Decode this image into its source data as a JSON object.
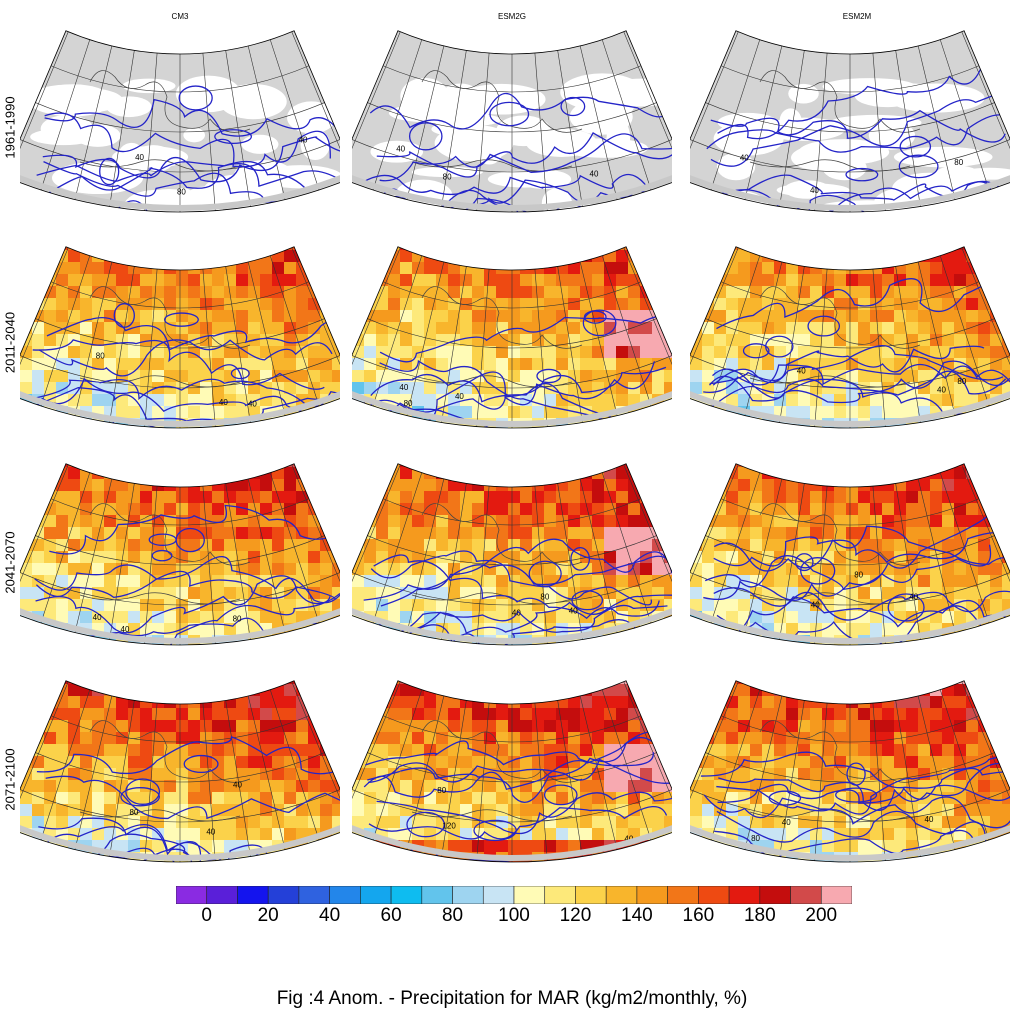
{
  "figure": {
    "caption": "Fig :4  Anom.  - Precipitation for MAR (kg/m2/monthly, %)",
    "columns": [
      "CM3",
      "ESM2G",
      "ESM2M"
    ],
    "rows": [
      "1961-1990",
      "2011-2040",
      "2041-2070",
      "2071-2100"
    ],
    "contour_labels": [
      "40",
      "80",
      "120"
    ],
    "colorbar": {
      "ticks": [
        "0",
        "20",
        "40",
        "60",
        "80",
        "100",
        "120",
        "140",
        "160",
        "180",
        "200"
      ],
      "colors": [
        "#8a2be2",
        "#5a1fd9",
        "#1414ee",
        "#2440d8",
        "#2f62e0",
        "#2386ea",
        "#14a6ee",
        "#0ebcf0",
        "#62c4ec",
        "#9ed4f0",
        "#c8e4f4",
        "#fffbb6",
        "#fde97a",
        "#fbd24a",
        "#f8b52c",
        "#f59a1e",
        "#f27618",
        "#ee4a12",
        "#e31a10",
        "#c40d0d",
        "#d24a4a",
        "#f7a9b0"
      ]
    }
  },
  "palette": {
    "land_grey": "#d4d4d4",
    "ocean_white": "#ffffff",
    "contour_blue": "#2424c8",
    "coast": "#444444"
  }
}
